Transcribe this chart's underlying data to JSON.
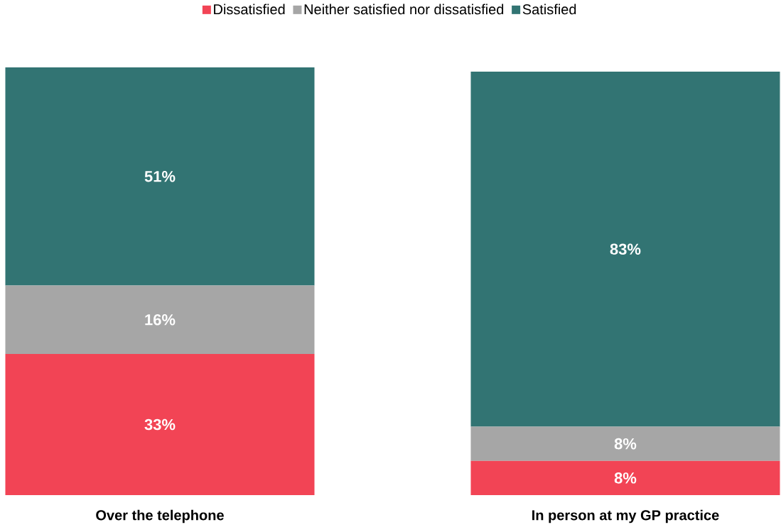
{
  "chart_data": {
    "type": "bar",
    "stacked": true,
    "legend": "top",
    "categories": [
      "Over the telephone",
      "In person at my GP practice"
    ],
    "series": [
      {
        "name": "Dissatisfied",
        "color": "#f24455",
        "values": [
          33,
          8
        ],
        "value_labels": [
          "33%",
          "8%"
        ]
      },
      {
        "name": "Neither satisfied nor dissatisfied",
        "color": "#a6a6a6",
        "values": [
          16,
          8
        ],
        "value_labels": [
          "16%",
          "8%"
        ]
      },
      {
        "name": "Satisfied",
        "color": "#327473",
        "values": [
          51,
          83
        ],
        "value_labels": [
          "51%",
          "83%"
        ]
      }
    ]
  }
}
